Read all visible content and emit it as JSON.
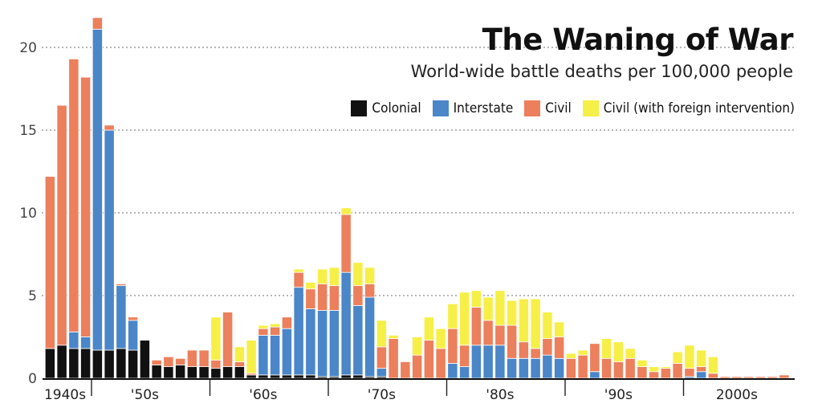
{
  "chart_data": {
    "type": "bar",
    "stacked": true,
    "title": "The Waning of War",
    "subtitle": "World-wide battle deaths per 100,000 people",
    "xlabel": "",
    "ylabel": "",
    "ylim": [
      0,
      22
    ],
    "yticks": [
      0,
      5,
      10,
      15,
      20
    ],
    "grid": "horizontal dotted at 5, 10, 15, 20",
    "legend_position": "top-right",
    "decade_labels": [
      "1940s",
      "'50s",
      "'60s",
      "'70s",
      "'80s",
      "'90s",
      "2000s"
    ],
    "colors": {
      "Colonial": "#111111",
      "Interstate": "#4a86c8",
      "Civil": "#ec7f5c",
      "Civil (with foreign intervention)": "#f6ef47"
    },
    "x": [
      1946,
      1947,
      1948,
      1949,
      1950,
      1951,
      1952,
      1953,
      1954,
      1955,
      1956,
      1957,
      1958,
      1959,
      1960,
      1961,
      1962,
      1963,
      1964,
      1965,
      1966,
      1967,
      1968,
      1969,
      1970,
      1971,
      1972,
      1973,
      1974,
      1975,
      1976,
      1977,
      1978,
      1979,
      1980,
      1981,
      1982,
      1983,
      1984,
      1985,
      1986,
      1987,
      1988,
      1989,
      1990,
      1991,
      1992,
      1993,
      1994,
      1995,
      1996,
      1997,
      1998,
      1999,
      2000,
      2001,
      2002,
      2003,
      2004,
      2005,
      2006,
      2007,
      2008
    ],
    "series": [
      {
        "name": "Colonial",
        "values": [
          1.8,
          2.0,
          1.8,
          1.8,
          1.7,
          1.7,
          1.8,
          1.7,
          2.3,
          0.8,
          0.7,
          0.8,
          0.7,
          0.7,
          0.6,
          0.7,
          0.7,
          0.2,
          0.2,
          0.2,
          0.2,
          0.2,
          0.2,
          0.1,
          0.1,
          0.2,
          0.2,
          0.1,
          0.1,
          0,
          0,
          0,
          0,
          0,
          0,
          0,
          0,
          0,
          0,
          0,
          0,
          0,
          0,
          0,
          0,
          0,
          0,
          0,
          0,
          0,
          0,
          0,
          0,
          0,
          0,
          0,
          0,
          0,
          0,
          0,
          0,
          0,
          0
        ]
      },
      {
        "name": "Interstate",
        "values": [
          0,
          0,
          1.0,
          0.7,
          19.4,
          13.3,
          3.8,
          1.8,
          0,
          0,
          0,
          0,
          0,
          0,
          0,
          0,
          0,
          0,
          2.4,
          2.4,
          2.8,
          5.3,
          4.0,
          4.0,
          4.0,
          6.2,
          4.2,
          4.8,
          0.5,
          0,
          0,
          0,
          0,
          0,
          0.9,
          0.7,
          2.0,
          2.0,
          2.0,
          1.2,
          1.2,
          1.2,
          1.4,
          1.2,
          0,
          0,
          0.4,
          0,
          0,
          0,
          0,
          0,
          0,
          0,
          0.1,
          0.4,
          0,
          0,
          0,
          0,
          0,
          0,
          0
        ]
      },
      {
        "name": "Civil",
        "values": [
          10.4,
          14.5,
          16.5,
          15.7,
          0.7,
          0.3,
          0.1,
          0.2,
          0,
          0.3,
          0.6,
          0.4,
          1.0,
          1.0,
          0.5,
          3.3,
          0.3,
          0.1,
          0.4,
          0.5,
          0.7,
          0.9,
          1.2,
          1.6,
          1.5,
          3.5,
          1.2,
          0.8,
          1.3,
          2.4,
          1.0,
          1.4,
          2.3,
          1.8,
          2.1,
          1.3,
          2.3,
          1.5,
          1.2,
          2.0,
          1.0,
          0.6,
          1.0,
          1.3,
          1.2,
          1.4,
          1.7,
          1.2,
          1.0,
          1.2,
          0.7,
          0.4,
          0.6,
          0.9,
          0.5,
          0.3,
          0.3,
          0.1,
          0.1,
          0.1,
          0.1,
          0.1,
          0.2
        ]
      },
      {
        "name": "Civil (with foreign intervention)",
        "values": [
          0,
          0,
          0,
          0,
          0,
          0,
          0,
          0,
          0,
          0,
          0,
          0,
          0,
          0,
          2.6,
          0,
          0.9,
          2.0,
          0.2,
          0.2,
          0,
          0.2,
          0.4,
          0.9,
          1.1,
          0.4,
          1.4,
          1.0,
          1.6,
          0.2,
          0,
          1.1,
          1.4,
          1.2,
          1.5,
          3.2,
          1.0,
          1.4,
          2.1,
          1.5,
          2.6,
          3.0,
          1.6,
          0.9,
          0.3,
          0.3,
          0,
          1.2,
          1.2,
          0.6,
          0.4,
          0.3,
          0.1,
          0.7,
          1.4,
          1.0,
          1.0,
          0,
          0,
          0,
          0,
          0,
          0
        ]
      }
    ]
  }
}
